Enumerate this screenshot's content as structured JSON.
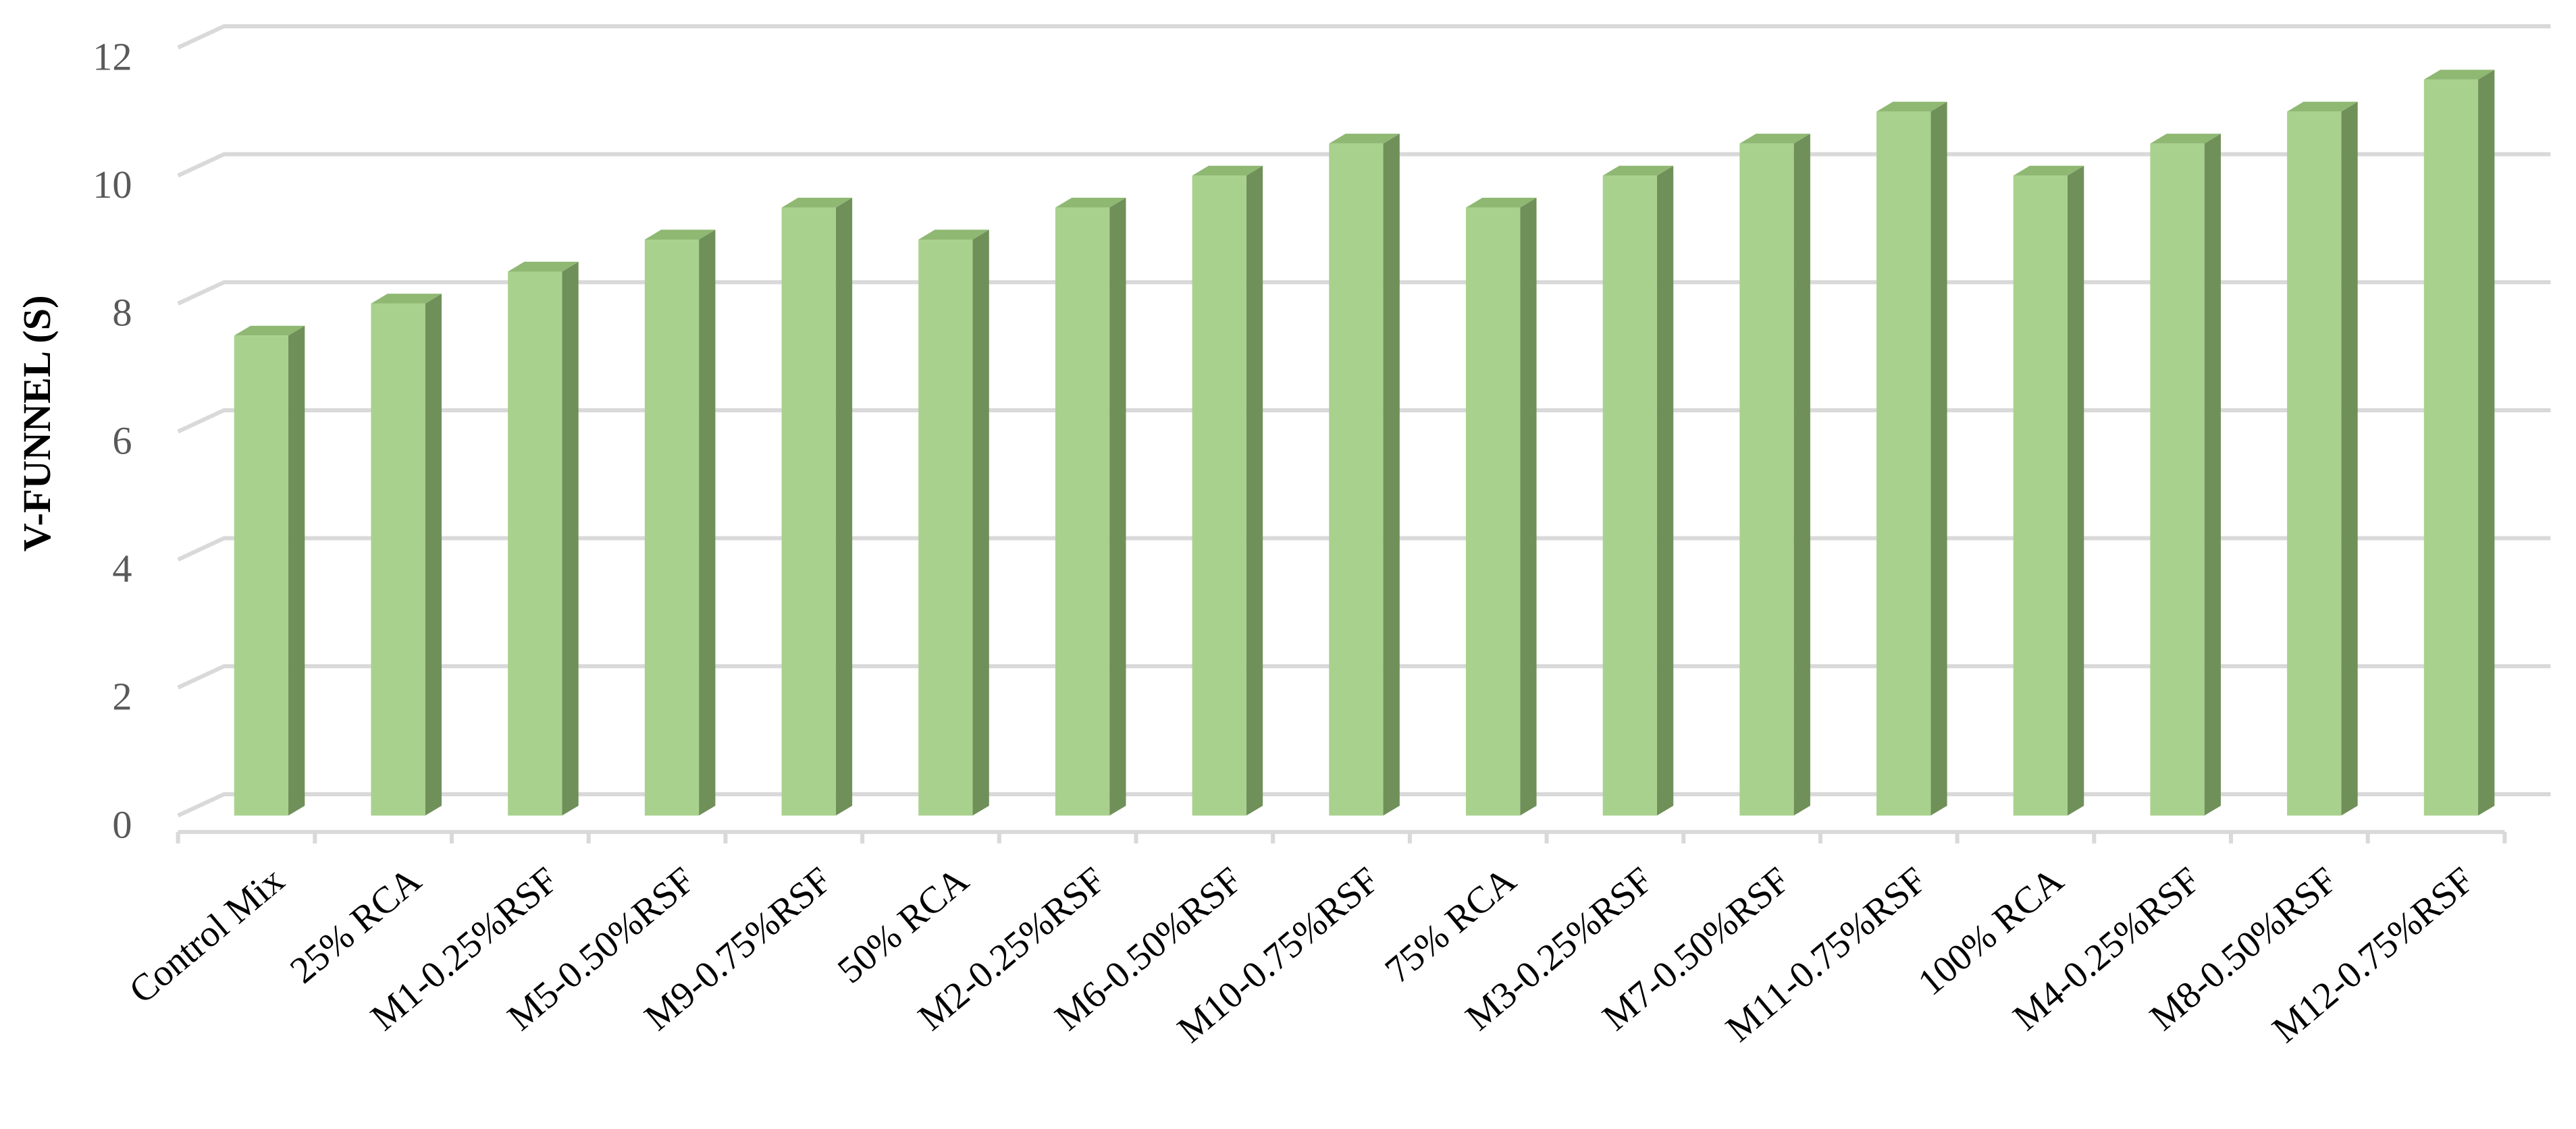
{
  "chart_data": {
    "type": "bar",
    "ylabel": "V-FUNNEL (S)",
    "categories": [
      "Control Mix",
      "25% RCA",
      "M1-0.25%RSF",
      "M5-0.50%RSF",
      "M9-0.75%RSF",
      "50% RCA",
      "M2-0.25%RSF",
      "M6-0.50%RSF",
      "M10-0.75%RSF",
      "75% RCA",
      "M3-0.25%RSF",
      "M7-0.50%RSF",
      "M11-0.75%RSF",
      "100% RCA",
      "M4-0.25%RSF",
      "M8-0.50%RSF",
      "M12-0.75%RSF"
    ],
    "values": [
      7.5,
      8,
      8.5,
      9,
      9.5,
      9,
      9.5,
      10,
      10.5,
      9.5,
      10,
      10.5,
      11,
      10,
      10.5,
      11,
      11.5
    ],
    "color": "#a9d18e",
    "ylim": [
      0,
      12
    ],
    "yticks": [
      0,
      2,
      4,
      6,
      8,
      10,
      12
    ],
    "grid": true
  }
}
